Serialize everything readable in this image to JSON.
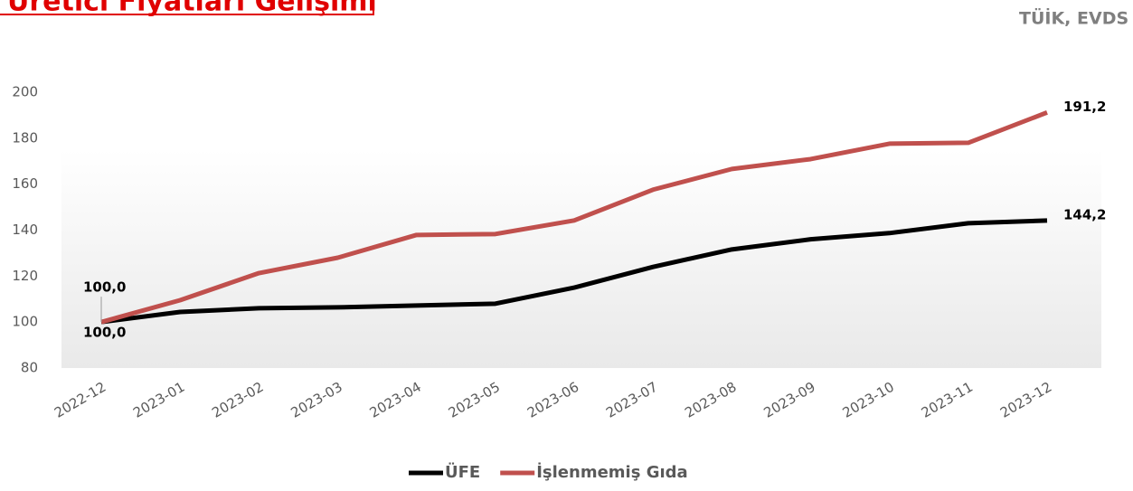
{
  "chart_data": {
    "type": "line",
    "title": "Üretici Fiyatları Gelişimi",
    "source": "TÜİK, EVDS",
    "categories": [
      "2022-12",
      "2023-01",
      "2023-02",
      "2023-03",
      "2023-04",
      "2023-05",
      "2023-06",
      "2023-07",
      "2023-08",
      "2023-09",
      "2023-10",
      "2023-11",
      "2023-12"
    ],
    "series": [
      {
        "name": "ÜFE",
        "color": "#000000",
        "values": [
          100,
          104.4,
          106,
          106.4,
          107.2,
          108,
          115,
          124,
          131.6,
          136,
          138.7,
          143,
          144.2
        ],
        "value_labels": [
          "100,0",
          null,
          null,
          null,
          null,
          null,
          null,
          null,
          null,
          null,
          null,
          null,
          "144,2"
        ]
      },
      {
        "name": "İşlenmemiş Gıda",
        "color": "#c0504d",
        "values": [
          100,
          109.5,
          121.3,
          128,
          137.9,
          138.3,
          144.2,
          157.6,
          166.6,
          170.9,
          177.6,
          178,
          191.2
        ],
        "value_labels": [
          "100,0",
          null,
          null,
          null,
          null,
          null,
          null,
          null,
          null,
          null,
          null,
          null,
          "191,2"
        ]
      }
    ],
    "ylim": [
      80,
      200
    ],
    "yticks": [
      80,
      100,
      120,
      140,
      160,
      180,
      200
    ],
    "grid": false
  }
}
